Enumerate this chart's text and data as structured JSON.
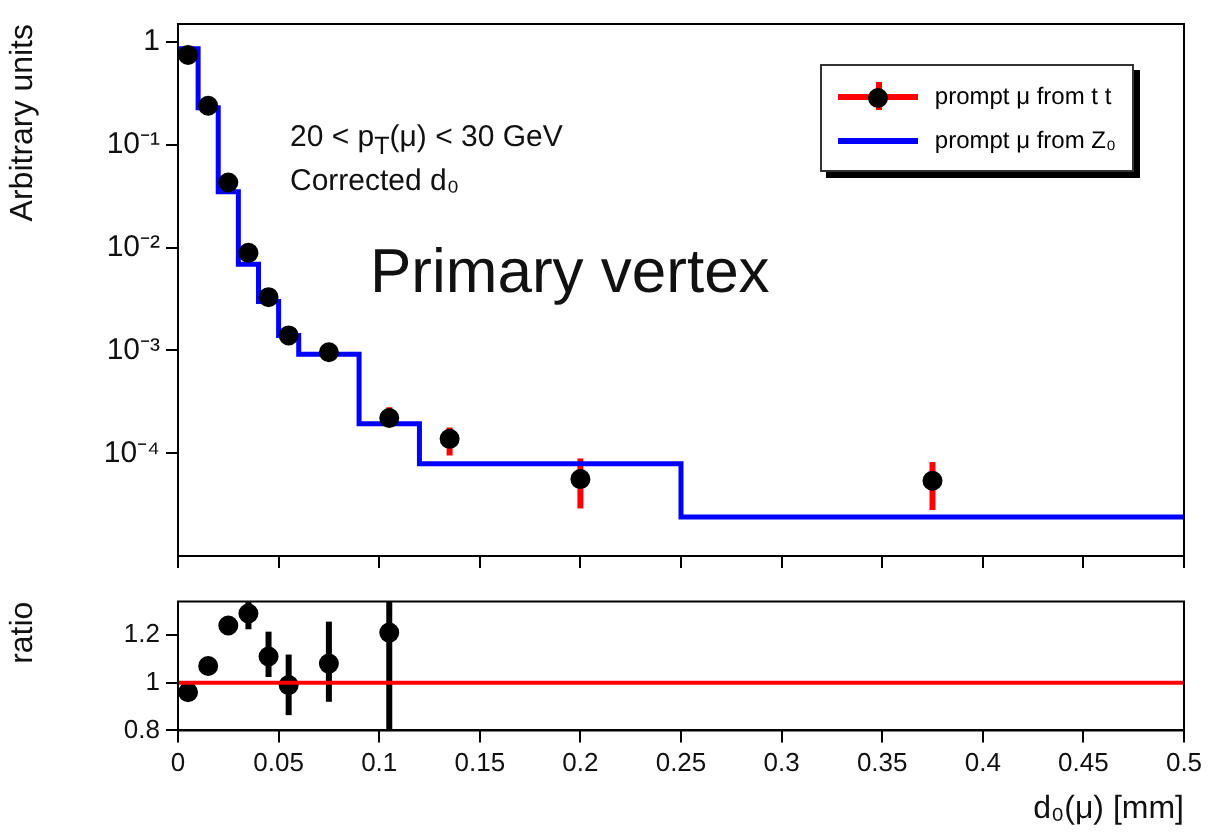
{
  "chart_data": [
    {
      "type": "scatter",
      "log": "y",
      "ylabel": "Arbitrary units",
      "xlim": [
        0,
        0.5
      ],
      "xticks": [
        0,
        0.05,
        0.1,
        0.15,
        0.2,
        0.25,
        0.3,
        0.35,
        0.4,
        0.45,
        0.5
      ],
      "ylim": [
        1e-05,
        1.5
      ],
      "yticks": [
        {
          "value": 1,
          "label": "1"
        },
        {
          "value": 0.1,
          "label": "10⁻¹"
        },
        {
          "value": 0.01,
          "label": "10⁻²"
        },
        {
          "value": 0.001,
          "label": "10⁻³"
        },
        {
          "value": 0.0001,
          "label": "10⁻⁴"
        }
      ],
      "tick_labels": "y",
      "grid": false,
      "legend": "top right",
      "annotations": [
        "20 < p$_{T}$(μ) < 30 GeV",
        "Corrected d₀",
        "Primary vertex"
      ],
      "series": [
        {
          "name": "prompt μ from t t",
          "marker": "circle",
          "color": "#000000",
          "x": [
            0.005,
            0.015,
            0.025,
            0.035,
            0.045,
            0.055,
            0.075,
            0.105,
            0.135,
            0.2,
            0.375
          ],
          "values": [
            0.75,
            0.24,
            0.043,
            0.0089,
            0.0033,
            0.0014,
            0.00096,
            0.00022,
            0.000138,
            5.6e-05,
            5.4e-05
          ],
          "errors": [
            null,
            null,
            null,
            null,
            null,
            null,
            null,
            [
              0.00018,
              0.00028
            ],
            [
              9.5e-05,
              0.000178
            ],
            [
              2.9e-05,
              8.9e-05
            ],
            [
              2.8e-05,
              8.2e-05
            ]
          ]
        },
        {
          "type": "step",
          "name": "prompt μ from Z₀",
          "color": "#0000ff",
          "x": [
            0,
            0.01,
            0.02,
            0.03,
            0.04,
            0.05,
            0.06,
            0.09,
            0.12,
            0.25,
            0.5
          ],
          "values": [
            0.86,
            0.23,
            0.035,
            0.0069,
            0.003,
            0.0014,
            0.00092,
            0.000194,
            7.9e-05,
            2.4e-05,
            2.4e-05
          ]
        }
      ]
    },
    {
      "type": "scatter",
      "ylabel": "ratio",
      "xlabel": "d₀(μ) [mm]",
      "xlim": [
        0,
        0.5
      ],
      "xticks": [
        0,
        0.05,
        0.1,
        0.15,
        0.2,
        0.25,
        0.3,
        0.35,
        0.4,
        0.45,
        0.5
      ],
      "ylim": [
        0.8,
        1.34
      ],
      "yticks": [
        0.8,
        1,
        1.2
      ],
      "grid": false,
      "marker": "circle",
      "ref_lines": [
        {
          "axis": "y",
          "value": 1,
          "color": "#ff0000"
        }
      ],
      "series": [
        {
          "color": "#000000",
          "x": [
            0.005,
            0.015,
            0.025,
            0.035,
            0.045,
            0.055,
            0.075,
            0.105
          ],
          "values": [
            0.96,
            1.07,
            1.24,
            1.29,
            1.11,
            0.99,
            1.08,
            1.21
          ],
          "errors": [
            null,
            null,
            null,
            [
              1.224,
              1.34
            ],
            [
              1.024,
              1.214
            ],
            [
              0.864,
              1.118
            ],
            [
              0.92,
              1.256
            ],
            [
              0.8,
              1.34
            ]
          ]
        }
      ]
    }
  ]
}
